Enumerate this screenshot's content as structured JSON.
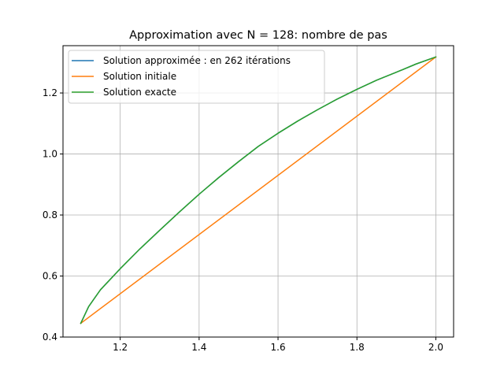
{
  "chart_data": {
    "type": "line",
    "title": "Approximation avec N = 128: nombre de pas",
    "xlabel": "",
    "ylabel": "",
    "xlim": [
      1.055,
      2.045
    ],
    "ylim": [
      0.4,
      1.355
    ],
    "xticks": [
      1.2,
      1.4,
      1.6,
      1.8,
      2.0
    ],
    "yticks": [
      0.4,
      0.6,
      0.8,
      1.0,
      1.2
    ],
    "xtick_labels": [
      "1.2",
      "1.4",
      "1.6",
      "1.8",
      "2.0"
    ],
    "ytick_labels": [
      "0.4",
      "0.6",
      "0.8",
      "1.0",
      "1.2"
    ],
    "grid": true,
    "legend_position": "top-left",
    "series": [
      {
        "name": "Solution approximée : en 262 itérations",
        "color": "#1f77b4",
        "x": [
          1.1,
          1.12,
          1.15,
          1.2,
          1.25,
          1.3,
          1.35,
          1.4,
          1.45,
          1.5,
          1.55,
          1.6,
          1.65,
          1.7,
          1.75,
          1.8,
          1.85,
          1.9,
          1.95,
          2.0
        ],
        "y": [
          0.445,
          0.5,
          0.555,
          0.624,
          0.689,
          0.75,
          0.81,
          0.868,
          0.923,
          0.975,
          1.025,
          1.068,
          1.108,
          1.145,
          1.18,
          1.212,
          1.242,
          1.268,
          1.295,
          1.318
        ]
      },
      {
        "name": "Solution initiale",
        "color": "#ff7f0e",
        "x": [
          1.1,
          2.0
        ],
        "y": [
          0.445,
          1.318
        ]
      },
      {
        "name": "Solution exacte",
        "color": "#2ca02c",
        "x": [
          1.1,
          1.12,
          1.15,
          1.2,
          1.25,
          1.3,
          1.35,
          1.4,
          1.45,
          1.5,
          1.55,
          1.6,
          1.65,
          1.7,
          1.75,
          1.8,
          1.85,
          1.9,
          1.95,
          2.0
        ],
        "y": [
          0.445,
          0.5,
          0.555,
          0.624,
          0.689,
          0.75,
          0.81,
          0.868,
          0.923,
          0.975,
          1.025,
          1.068,
          1.108,
          1.145,
          1.18,
          1.212,
          1.242,
          1.268,
          1.295,
          1.318
        ]
      }
    ]
  }
}
